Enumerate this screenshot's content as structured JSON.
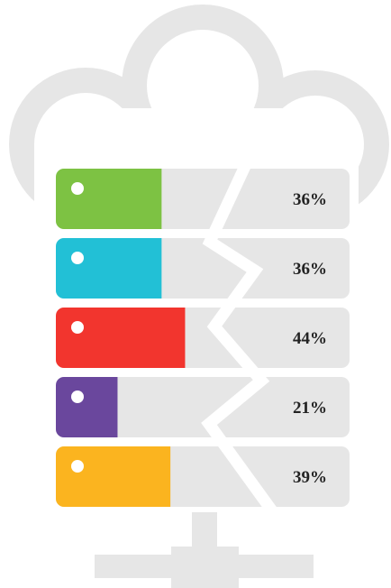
{
  "chart_data": {
    "type": "bar",
    "orientation": "horizontal",
    "values": [
      36,
      36,
      44,
      21,
      39
    ],
    "value_labels": [
      "36%",
      "36%",
      "44%",
      "21%",
      "39%"
    ],
    "colors": [
      "#7dc243",
      "#22c0d6",
      "#f2352e",
      "#6a479d",
      "#fbb41f"
    ],
    "xlim": [
      0,
      100
    ]
  }
}
